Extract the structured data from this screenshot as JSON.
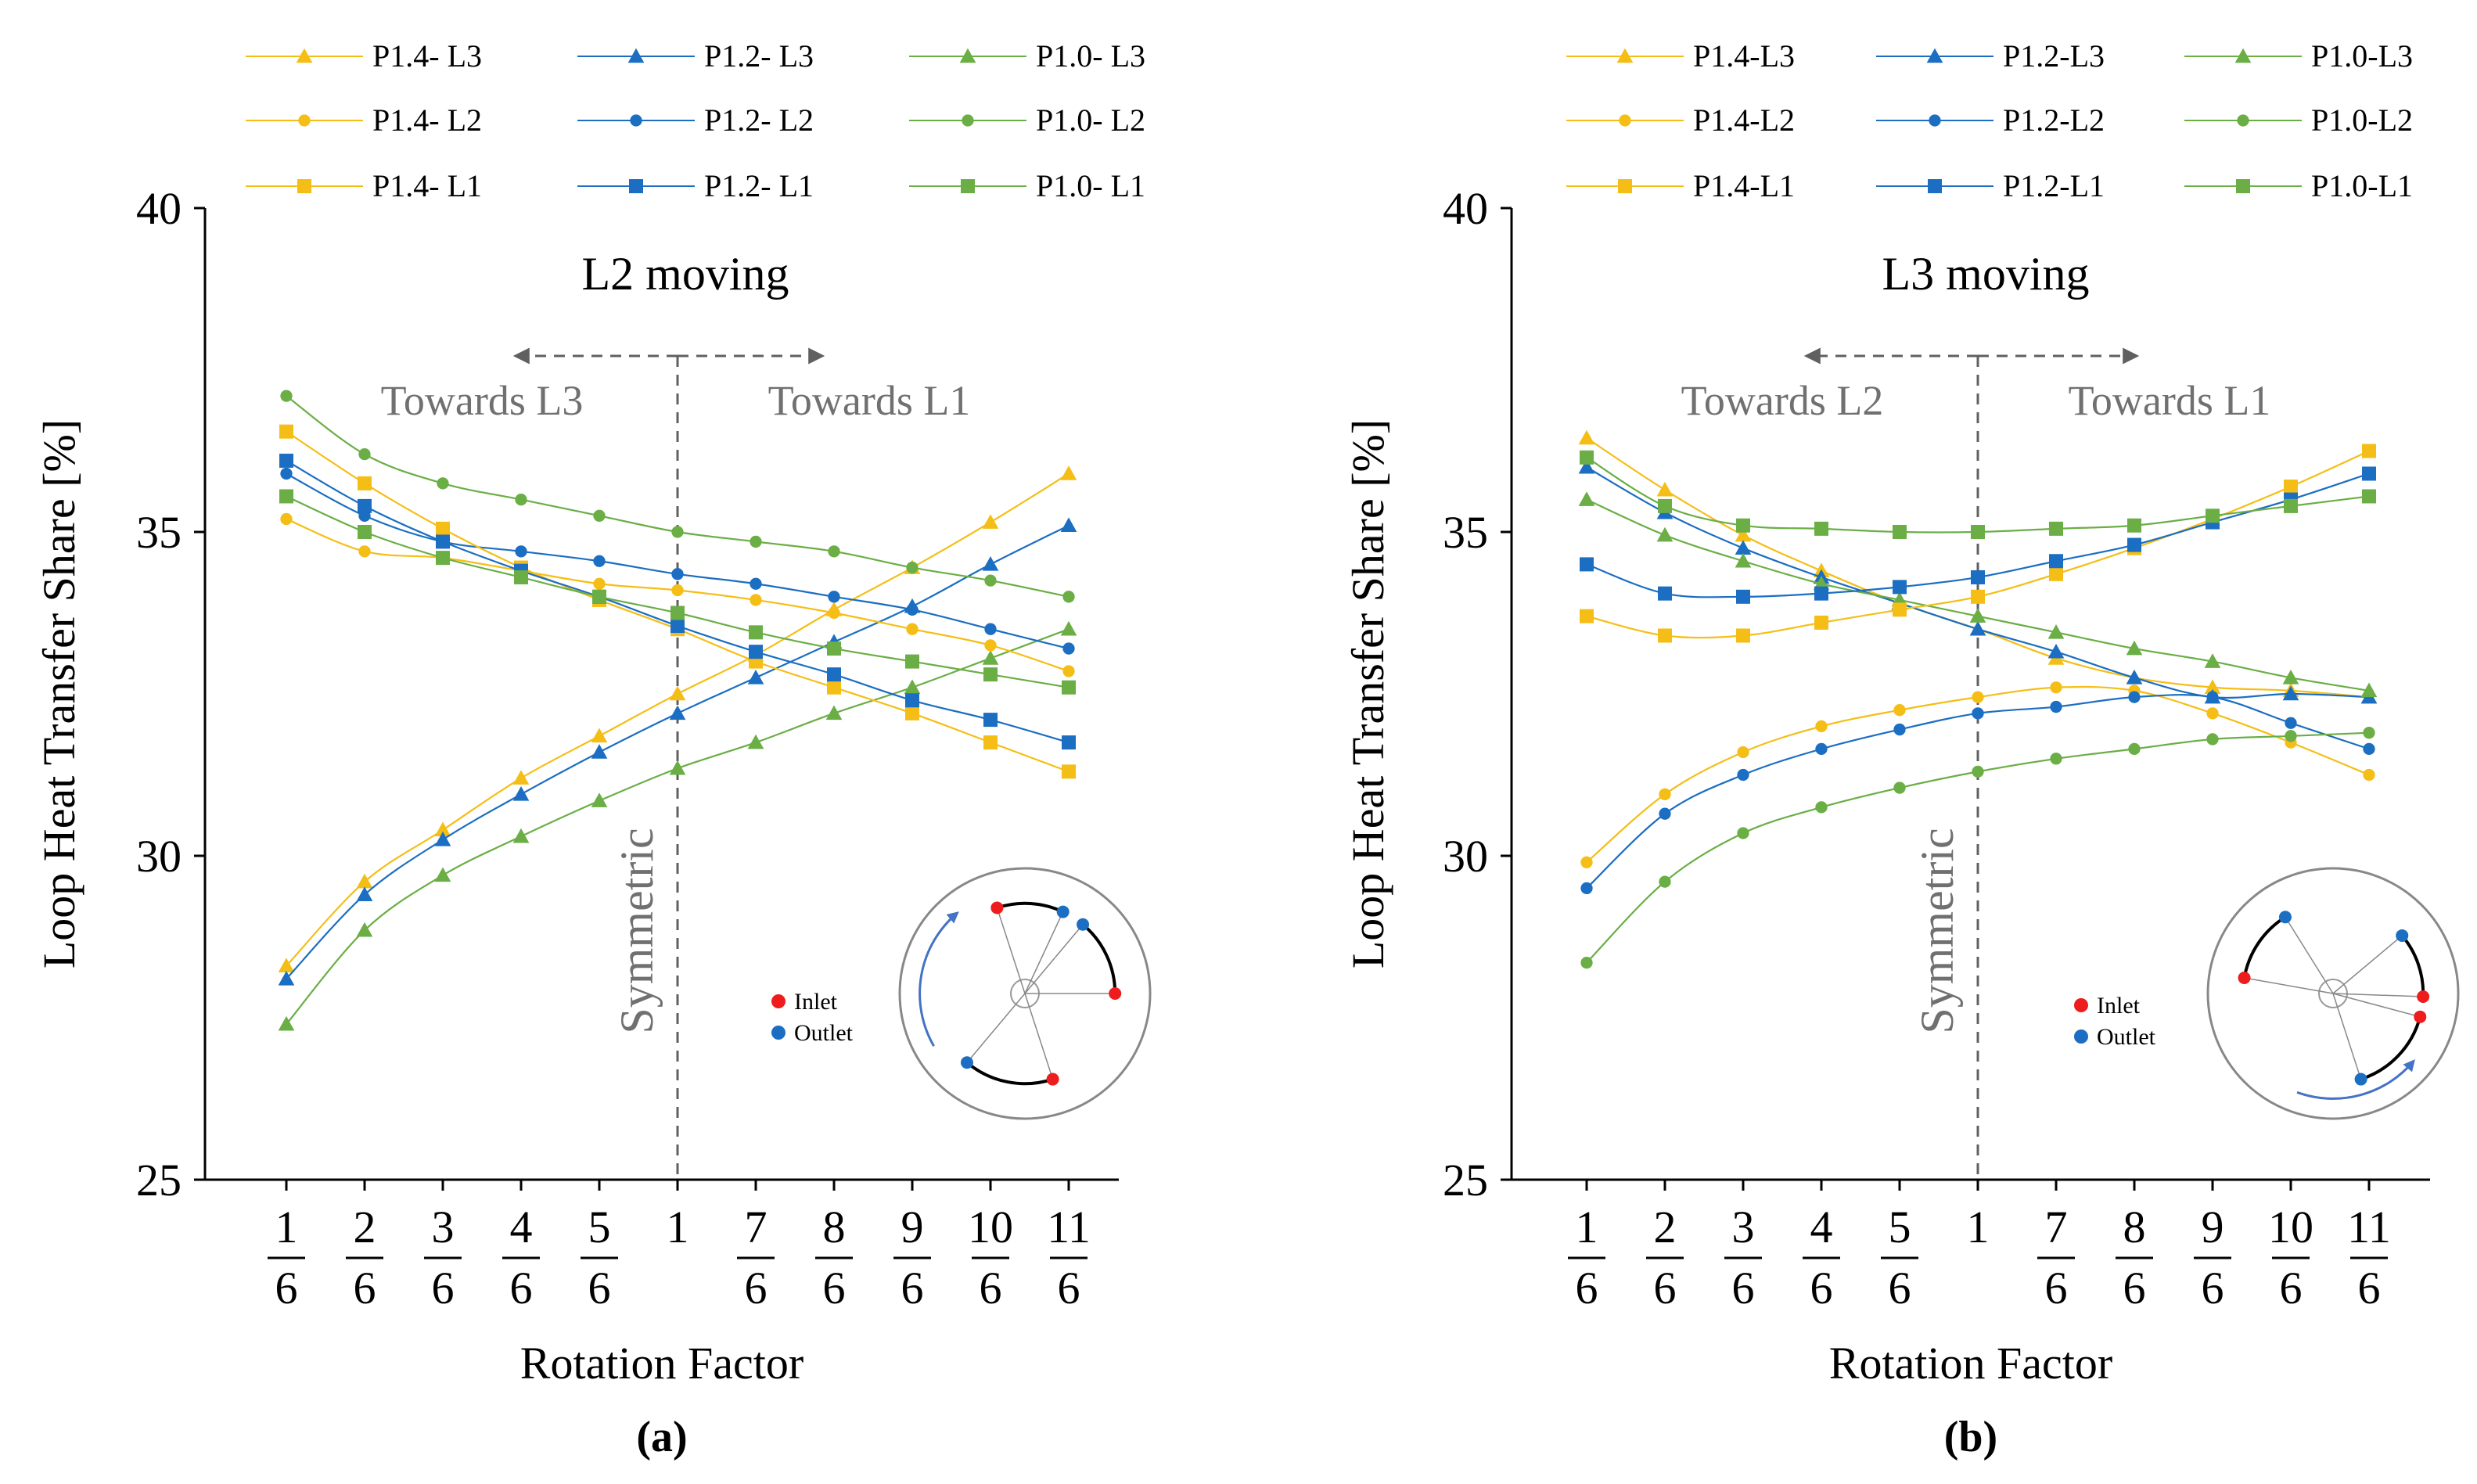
{
  "colors": {
    "P1.4": "#F5BE16",
    "P1.2": "#1B6EC2",
    "P1.0": "#6AAE45",
    "axis": "#000000",
    "annotation": "#707070",
    "arrow_dash": "#606060",
    "inlet": "#EE1C1C",
    "outlet": "#1B6EC2",
    "rotation_arrow": "#4472C4",
    "ring": "#888888"
  },
  "legend_markers": {
    "L3": "triangle",
    "L2": "circle",
    "L1": "square"
  },
  "x_ticks": [
    {
      "num": "1",
      "den": "6"
    },
    {
      "num": "2",
      "den": "6"
    },
    {
      "num": "3",
      "den": "6"
    },
    {
      "num": "4",
      "den": "6"
    },
    {
      "num": "5",
      "den": "6"
    },
    {
      "num": "1",
      "den": ""
    },
    {
      "num": "7",
      "den": "6"
    },
    {
      "num": "8",
      "den": "6"
    },
    {
      "num": "9",
      "den": "6"
    },
    {
      "num": "10",
      "den": "6"
    },
    {
      "num": "11",
      "den": "6"
    }
  ],
  "chart_data": [
    {
      "type": "line",
      "panel_label": "(a)",
      "title": "L2 moving",
      "xlabel": "Rotation Factor",
      "ylabel": "Loop Heat Transfer Share [%]",
      "ylim": [
        25,
        40
      ],
      "yticks": [
        25,
        30,
        35,
        40
      ],
      "categories": [
        "1/6",
        "2/6",
        "3/6",
        "4/6",
        "5/6",
        "1",
        "7/6",
        "8/6",
        "9/6",
        "10/6",
        "11/6"
      ],
      "annotations": {
        "symmetric": "Symmetric",
        "left": "Towards L3",
        "right": "Towards L1"
      },
      "inset": {
        "inlet_label": "Inlet",
        "outlet_label": "Outlet"
      },
      "series": [
        {
          "name": "P1.4- L3",
          "group": "P1.4",
          "loop": "L3",
          "values": [
            28.3,
            29.6,
            30.4,
            31.2,
            31.85,
            32.5,
            33.1,
            33.8,
            34.45,
            35.15,
            35.9
          ]
        },
        {
          "name": "P1.2- L3",
          "group": "P1.2",
          "loop": "L3",
          "values": [
            28.1,
            29.4,
            30.25,
            30.95,
            31.6,
            32.2,
            32.75,
            33.3,
            33.85,
            34.5,
            35.1
          ]
        },
        {
          "name": "P1.0- L3",
          "group": "P1.0",
          "loop": "L3",
          "values": [
            27.4,
            28.85,
            29.7,
            30.3,
            30.85,
            31.35,
            31.75,
            32.2,
            32.6,
            33.05,
            33.5
          ]
        },
        {
          "name": "P1.4- L2",
          "group": "P1.4",
          "loop": "L2",
          "values": [
            35.2,
            34.7,
            34.6,
            34.4,
            34.2,
            34.1,
            33.95,
            33.75,
            33.5,
            33.25,
            32.85
          ]
        },
        {
          "name": "P1.2- L2",
          "group": "P1.2",
          "loop": "L2",
          "values": [
            35.9,
            35.25,
            34.85,
            34.7,
            34.55,
            34.35,
            34.2,
            34.0,
            33.8,
            33.5,
            33.2
          ]
        },
        {
          "name": "P1.0- L2",
          "group": "P1.0",
          "loop": "L2",
          "values": [
            37.1,
            36.2,
            35.75,
            35.5,
            35.25,
            35.0,
            34.85,
            34.7,
            34.45,
            34.25,
            34.0
          ]
        },
        {
          "name": "P1.4- L1",
          "group": "P1.4",
          "loop": "L1",
          "values": [
            36.55,
            35.75,
            35.05,
            34.45,
            33.95,
            33.5,
            33.0,
            32.6,
            32.2,
            31.75,
            31.3
          ]
        },
        {
          "name": "P1.2- L1",
          "group": "P1.2",
          "loop": "L1",
          "values": [
            36.1,
            35.4,
            34.85,
            34.4,
            34.0,
            33.55,
            33.15,
            32.8,
            32.4,
            32.1,
            31.75
          ]
        },
        {
          "name": "P1.0- L1",
          "group": "P1.0",
          "loop": "L1",
          "values": [
            35.55,
            35.0,
            34.6,
            34.3,
            34.0,
            33.75,
            33.45,
            33.2,
            33.0,
            32.8,
            32.6
          ]
        }
      ]
    },
    {
      "type": "line",
      "panel_label": "(b)",
      "title": "L3 moving",
      "xlabel": "Rotation Factor",
      "ylabel": "Loop Heat Transfer Share [%]",
      "ylim": [
        25,
        40
      ],
      "yticks": [
        25,
        30,
        35,
        40
      ],
      "categories": [
        "1/6",
        "2/6",
        "3/6",
        "4/6",
        "5/6",
        "1",
        "7/6",
        "8/6",
        "9/6",
        "10/6",
        "11/6"
      ],
      "annotations": {
        "symmetric": "Symmetric",
        "left": "Towards L2",
        "right": "Towards L1"
      },
      "inset": {
        "inlet_label": "Inlet",
        "outlet_label": "Outlet"
      },
      "series": [
        {
          "name": "P1.4-L3",
          "group": "P1.4",
          "loop": "L3",
          "values": [
            36.45,
            35.65,
            34.95,
            34.4,
            33.9,
            33.5,
            33.05,
            32.75,
            32.6,
            32.55,
            32.45
          ]
        },
        {
          "name": "P1.2-L3",
          "group": "P1.2",
          "loop": "L3",
          "values": [
            36.0,
            35.3,
            34.75,
            34.3,
            33.9,
            33.5,
            33.15,
            32.75,
            32.45,
            32.5,
            32.45
          ]
        },
        {
          "name": "P1.0-L3",
          "group": "P1.0",
          "loop": "L3",
          "values": [
            35.5,
            34.95,
            34.55,
            34.2,
            33.95,
            33.7,
            33.45,
            33.2,
            33.0,
            32.75,
            32.55
          ]
        },
        {
          "name": "P1.4-L2",
          "group": "P1.4",
          "loop": "L2",
          "values": [
            29.9,
            30.95,
            31.6,
            32.0,
            32.25,
            32.45,
            32.6,
            32.55,
            32.2,
            31.75,
            31.25
          ]
        },
        {
          "name": "P1.2-L2",
          "group": "P1.2",
          "loop": "L2",
          "values": [
            29.5,
            30.65,
            31.25,
            31.65,
            31.95,
            32.2,
            32.3,
            32.45,
            32.45,
            32.05,
            31.65
          ]
        },
        {
          "name": "P1.0-L2",
          "group": "P1.0",
          "loop": "L2",
          "values": [
            28.35,
            29.6,
            30.35,
            30.75,
            31.05,
            31.3,
            31.5,
            31.65,
            31.8,
            31.85,
            31.9
          ]
        },
        {
          "name": "P1.4-L1",
          "group": "P1.4",
          "loop": "L1",
          "values": [
            33.7,
            33.4,
            33.4,
            33.6,
            33.8,
            34.0,
            34.35,
            34.75,
            35.2,
            35.7,
            36.25
          ]
        },
        {
          "name": "P1.2-L1",
          "group": "P1.2",
          "loop": "L1",
          "values": [
            34.5,
            34.05,
            34.0,
            34.05,
            34.15,
            34.3,
            34.55,
            34.8,
            35.15,
            35.5,
            35.9
          ]
        },
        {
          "name": "P1.0-L1",
          "group": "P1.0",
          "loop": "L1",
          "values": [
            36.15,
            35.4,
            35.1,
            35.05,
            35.0,
            35.0,
            35.05,
            35.1,
            35.25,
            35.4,
            35.55
          ]
        }
      ]
    }
  ]
}
